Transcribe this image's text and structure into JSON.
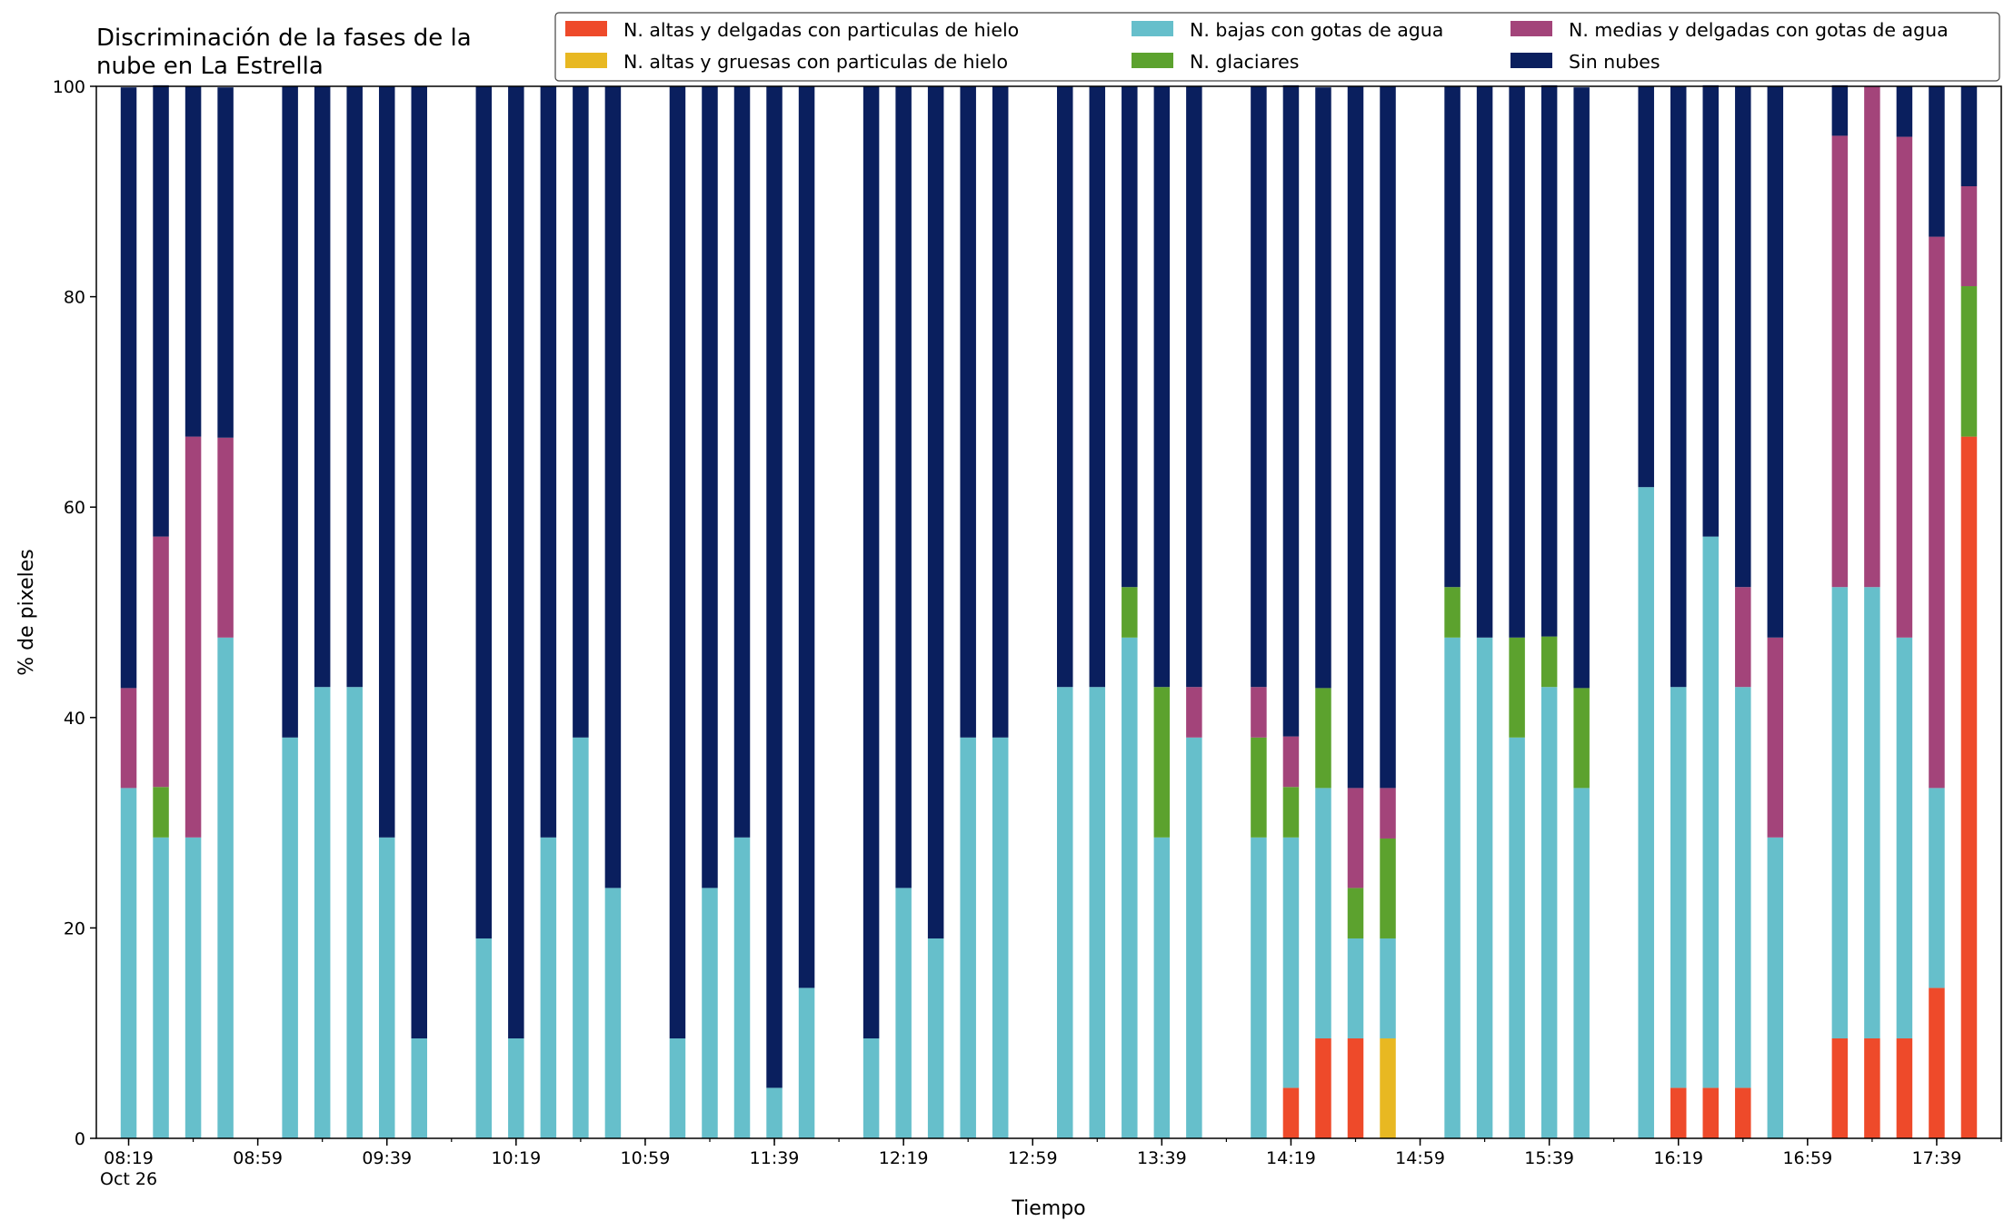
{
  "chart_data": {
    "type": "bar",
    "stacked": true,
    "title": "Discriminación de la fases de la\nnube en La Estrella",
    "xlabel": "Tiempo",
    "ylabel": "% de pixeles",
    "ylim": [
      0,
      100
    ],
    "y_ticks": [
      "0",
      "20",
      "40",
      "60",
      "80",
      "100"
    ],
    "x_ticks": [
      {
        "time": "08:19",
        "label": "08:19",
        "sublabel": "Oct 26"
      },
      {
        "time": "08:59",
        "label": "08:59"
      },
      {
        "time": "09:39",
        "label": "09:39"
      },
      {
        "time": "10:19",
        "label": "10:19"
      },
      {
        "time": "10:59",
        "label": "10:59"
      },
      {
        "time": "11:39",
        "label": "11:39"
      },
      {
        "time": "12:19",
        "label": "12:19"
      },
      {
        "time": "12:59",
        "label": "12:59"
      },
      {
        "time": "13:39",
        "label": "13:39"
      },
      {
        "time": "14:19",
        "label": "14:19"
      },
      {
        "time": "14:59",
        "label": "14:59"
      },
      {
        "time": "15:39",
        "label": "15:39"
      },
      {
        "time": "16:19",
        "label": "16:19"
      },
      {
        "time": "16:59",
        "label": "16:59"
      },
      {
        "time": "17:39",
        "label": "17:39"
      }
    ],
    "grid": false,
    "legend_position": "top",
    "times": [
      "08:19",
      "08:29",
      "08:39",
      "08:49",
      "09:09",
      "09:19",
      "09:29",
      "09:39",
      "09:49",
      "10:09",
      "10:19",
      "10:29",
      "10:39",
      "10:49",
      "11:09",
      "11:19",
      "11:29",
      "11:39",
      "11:49",
      "12:09",
      "12:19",
      "12:29",
      "12:39",
      "12:49",
      "13:09",
      "13:19",
      "13:29",
      "13:39",
      "13:49",
      "14:09",
      "14:19",
      "14:29",
      "14:39",
      "14:49",
      "15:09",
      "15:19",
      "15:29",
      "15:39",
      "15:49",
      "16:09",
      "16:19",
      "16:29",
      "16:39",
      "16:49",
      "17:09",
      "17:19",
      "17:29",
      "17:39",
      "17:49"
    ],
    "series": [
      {
        "name": "N. altas y delgadas con particulas de hielo",
        "color": "#ee4a2a",
        "values": [
          0,
          0,
          0,
          0,
          0,
          0,
          0,
          0,
          0,
          0,
          0,
          0,
          0,
          0,
          0,
          0,
          0,
          0,
          0,
          0,
          0,
          0,
          0,
          0,
          0,
          0,
          0,
          0,
          0,
          0,
          4.8,
          9.5,
          9.5,
          0,
          0,
          0,
          0,
          0,
          0,
          0,
          4.8,
          4.8,
          4.8,
          0,
          9.5,
          9.5,
          9.5,
          14.3,
          66.7
        ]
      },
      {
        "name": "N. altas y gruesas con particulas de hielo",
        "color": "#e8b822",
        "values": [
          0,
          0,
          0,
          0,
          0,
          0,
          0,
          0,
          0,
          0,
          0,
          0,
          0,
          0,
          0,
          0,
          0,
          0,
          0,
          0,
          0,
          0,
          0,
          0,
          0,
          0,
          0,
          0,
          0,
          0,
          0,
          0,
          0,
          9.5,
          0,
          0,
          0,
          0,
          0,
          0,
          0,
          0,
          0,
          0,
          0,
          0,
          0,
          0,
          0
        ]
      },
      {
        "name": "N. bajas con gotas de agua",
        "color": "#66bfcb",
        "values": [
          33.3,
          28.6,
          28.6,
          47.6,
          38.1,
          42.9,
          42.9,
          28.6,
          9.5,
          19.0,
          9.5,
          28.6,
          38.1,
          23.8,
          9.5,
          23.8,
          28.6,
          4.8,
          14.3,
          9.5,
          23.8,
          19.0,
          38.1,
          38.1,
          42.9,
          42.9,
          47.6,
          28.6,
          38.1,
          28.6,
          23.8,
          23.8,
          9.5,
          9.5,
          47.6,
          47.6,
          38.1,
          42.9,
          33.3,
          61.9,
          38.1,
          52.4,
          38.1,
          28.6,
          42.9,
          42.9,
          38.1,
          19.0,
          0
        ]
      },
      {
        "name": "N. glaciares",
        "color": "#5ca22e",
        "values": [
          0,
          4.8,
          0,
          0,
          0,
          0,
          0,
          0,
          0,
          0,
          0,
          0,
          0,
          0,
          0,
          0,
          0,
          0,
          0,
          0,
          0,
          0,
          0,
          0,
          0,
          0,
          4.8,
          14.3,
          0,
          9.5,
          4.8,
          9.5,
          4.8,
          9.5,
          4.8,
          0,
          9.5,
          4.8,
          9.5,
          0,
          0,
          0,
          0,
          0,
          0,
          0,
          0,
          0,
          14.3
        ]
      },
      {
        "name": "N. medias y delgadas con gotas de agua",
        "color": "#a3447a",
        "values": [
          9.5,
          23.8,
          38.1,
          19.0,
          0,
          0,
          0,
          0,
          0,
          0,
          0,
          0,
          0,
          0,
          0,
          0,
          0,
          0,
          0,
          0,
          0,
          0,
          0,
          0,
          0,
          0,
          0,
          0,
          4.8,
          4.8,
          4.8,
          0,
          9.5,
          4.8,
          0,
          0,
          0,
          0,
          0,
          0,
          0,
          0,
          9.5,
          19.0,
          42.9,
          47.6,
          47.6,
          52.4,
          9.5
        ]
      },
      {
        "name": "Sin nubes",
        "color": "#0a1f5e",
        "values": [
          57.1,
          42.9,
          33.3,
          33.3,
          61.9,
          57.1,
          57.1,
          71.4,
          90.5,
          81.0,
          90.5,
          71.4,
          61.9,
          76.2,
          90.5,
          76.2,
          71.4,
          95.2,
          85.7,
          90.5,
          76.2,
          81.0,
          61.9,
          61.9,
          57.1,
          57.1,
          47.6,
          57.1,
          57.1,
          57.1,
          61.9,
          57.1,
          66.7,
          66.7,
          47.6,
          52.4,
          52.4,
          52.4,
          57.1,
          38.1,
          57.1,
          42.9,
          47.6,
          52.4,
          4.8,
          0,
          4.8,
          14.3,
          9.5
        ]
      }
    ]
  }
}
